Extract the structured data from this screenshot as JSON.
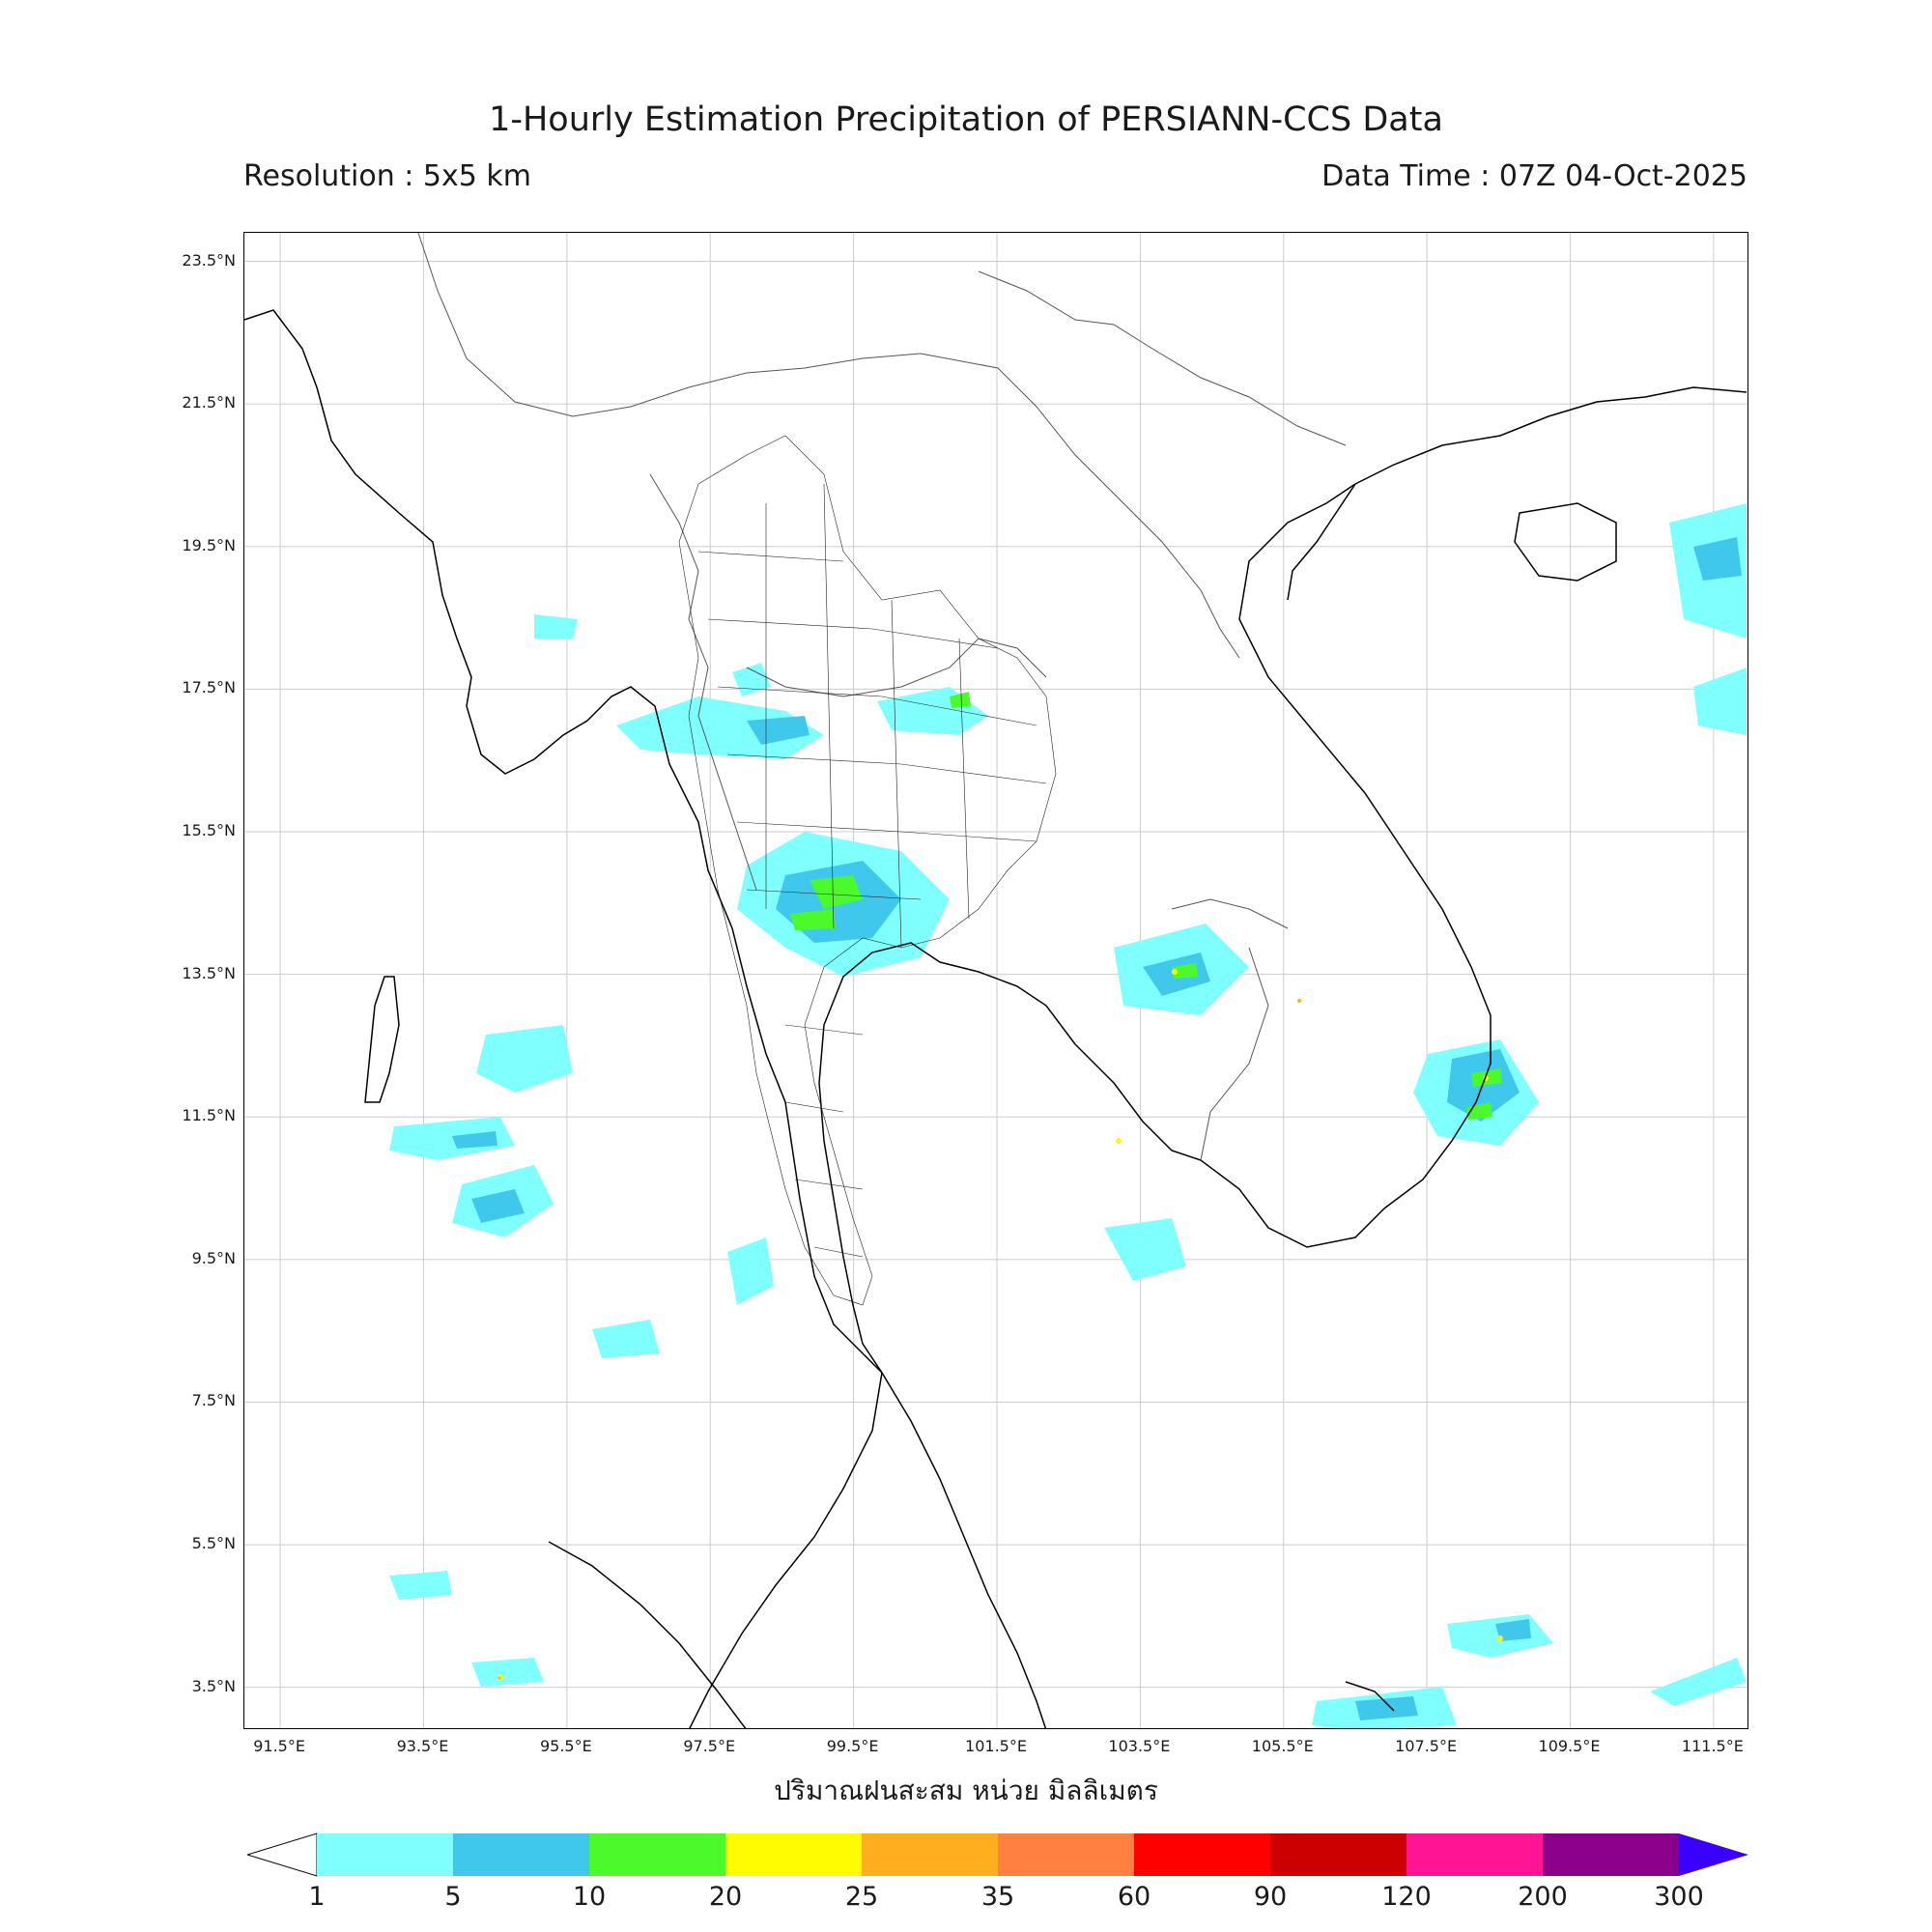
{
  "header": {
    "title": "1-Hourly Estimation Precipitation of PERSIANN-CCS Data",
    "resolution": "Resolution : 5x5 km",
    "data_time": "Data Time : 07Z 04-Oct-2025"
  },
  "map": {
    "lon_range": [
      91,
      112
    ],
    "lat_range": [
      2.9,
      23.9
    ],
    "lat_labels": [
      "23.5°N",
      "21.5°N",
      "19.5°N",
      "17.5°N",
      "15.5°N",
      "13.5°N",
      "11.5°N",
      "9.5°N",
      "7.5°N",
      "5.5°N",
      "3.5°N"
    ],
    "lon_labels": [
      "91.5°E",
      "93.5°E",
      "95.5°E",
      "97.5°E",
      "99.5°E",
      "101.5°E",
      "103.5°E",
      "105.5°E",
      "107.5°E",
      "109.5°E",
      "111.5°E"
    ]
  },
  "legend": {
    "unit_label": "ปริมาณฝนสะสม หน่วย มิลลิเมตร",
    "ticks": [
      "1",
      "5",
      "10",
      "20",
      "25",
      "35",
      "60",
      "90",
      "120",
      "200",
      "300"
    ],
    "colors": [
      "#80ffff",
      "#40c8ec",
      "#4cfa2c",
      "#fffc00",
      "#ffae20",
      "#ff8040",
      "#ff0000",
      "#cc0000",
      "#ff1493",
      "#8b008b"
    ],
    "under_color": "#ffffff",
    "over_color": "#3a00ff"
  }
}
